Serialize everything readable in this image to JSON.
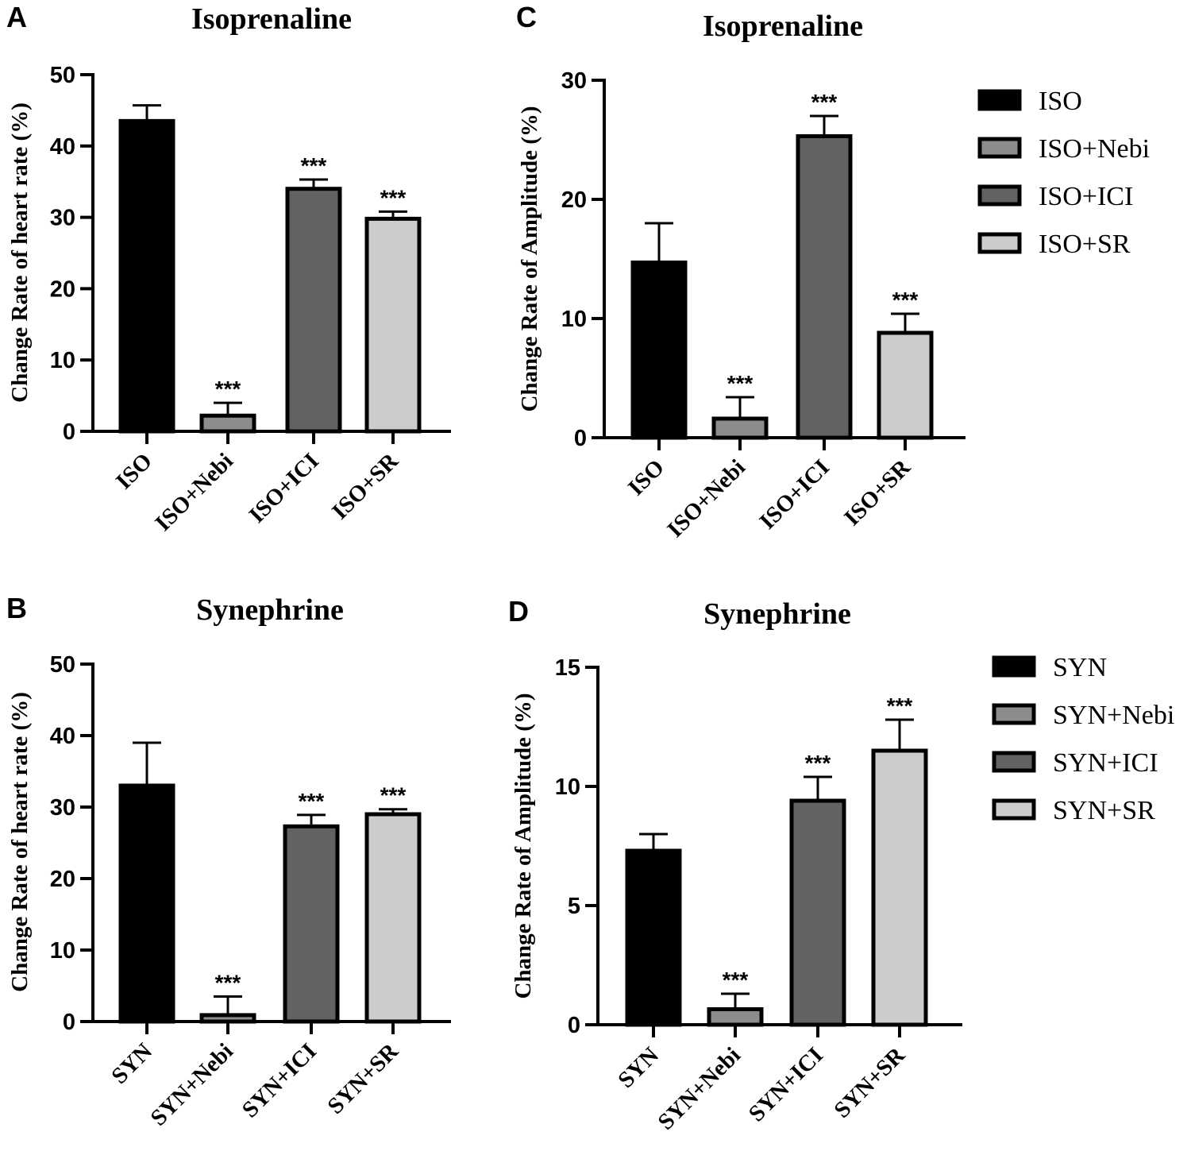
{
  "chart_data": [
    {
      "panel": "A",
      "type": "bar",
      "title": "Isoprenaline",
      "ylabel": "Change Rate of heart rate (%)",
      "xlabel": "",
      "ylim": [
        0,
        50
      ],
      "yticks": [
        0,
        10,
        20,
        30,
        40,
        50
      ],
      "categories": [
        "ISO",
        "ISO+Nebi",
        "ISO+ICI",
        "ISO+SR"
      ],
      "values": [
        43.5,
        2.2,
        34.0,
        29.8
      ],
      "errors": [
        2.2,
        1.8,
        1.3,
        1.0
      ],
      "significance": [
        "",
        "***",
        "***",
        "***"
      ],
      "colors": [
        "#000000",
        "#8c8c8c",
        "#626262",
        "#cccccc"
      ]
    },
    {
      "panel": "B",
      "type": "bar",
      "title": "Synephrine",
      "ylabel": "Change Rate of heart rate (%)",
      "xlabel": "",
      "ylim": [
        0,
        50
      ],
      "yticks": [
        0,
        10,
        20,
        30,
        40,
        50
      ],
      "categories": [
        "SYN",
        "SYN+Nebi",
        "SYN+ICI",
        "SYN+SR"
      ],
      "values": [
        33.0,
        0.9,
        27.3,
        29.0
      ],
      "errors": [
        6.0,
        2.6,
        1.6,
        0.7
      ],
      "significance": [
        "",
        "***",
        "***",
        "***"
      ],
      "colors": [
        "#000000",
        "#8c8c8c",
        "#626262",
        "#cccccc"
      ]
    },
    {
      "panel": "C",
      "type": "bar",
      "title": "Isoprenaline",
      "ylabel": "Change Rate of Amplitude (%)",
      "xlabel": "",
      "ylim": [
        0,
        30
      ],
      "yticks": [
        0,
        10,
        20,
        30
      ],
      "categories": [
        "ISO",
        "ISO+Nebi",
        "ISO+ICI",
        "ISO+SR"
      ],
      "values": [
        14.7,
        1.6,
        25.3,
        8.8
      ],
      "errors": [
        3.3,
        1.8,
        1.7,
        1.6
      ],
      "significance": [
        "",
        "***",
        "***",
        "***"
      ],
      "colors": [
        "#000000",
        "#8c8c8c",
        "#626262",
        "#cccccc"
      ],
      "legend": [
        "ISO",
        "ISO+Nebi",
        "ISO+ICI",
        "ISO+SR"
      ]
    },
    {
      "panel": "D",
      "type": "bar",
      "title": "Synephrine",
      "ylabel": "Change Rate of Amplitude (%)",
      "xlabel": "",
      "ylim": [
        0,
        15
      ],
      "yticks": [
        0,
        5,
        10,
        15
      ],
      "categories": [
        "SYN",
        "SYN+Nebi",
        "SYN+ICI",
        "SYN+SR"
      ],
      "values": [
        7.3,
        0.65,
        9.4,
        11.5
      ],
      "errors": [
        0.7,
        0.65,
        1.0,
        1.3
      ],
      "significance": [
        "",
        "***",
        "***",
        "***"
      ],
      "colors": [
        "#000000",
        "#8c8c8c",
        "#626262",
        "#cccccc"
      ],
      "legend": [
        "SYN",
        "SYN+Nebi",
        "SYN+ICI",
        "SYN+SR"
      ]
    }
  ]
}
